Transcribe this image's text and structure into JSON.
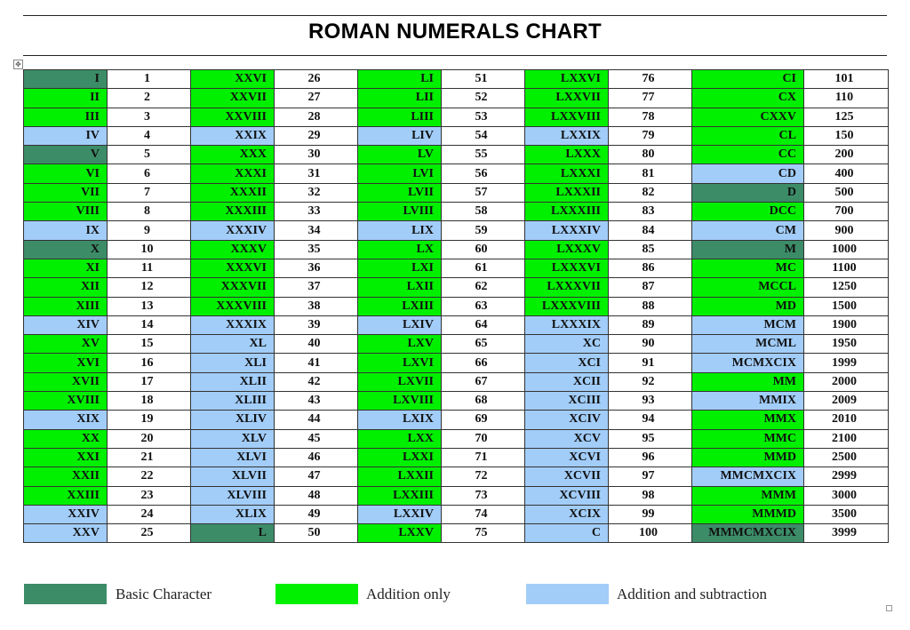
{
  "title": "ROMAN NUMERALS CHART",
  "colors": {
    "basic": "#3C8C68",
    "addition": "#00F000",
    "subtraction": "#A2CDF9"
  },
  "legend": [
    {
      "label": "Basic Character",
      "type": "basic"
    },
    {
      "label": "Addition only",
      "type": "addition"
    },
    {
      "label": "Addition and subtraction",
      "type": "subtraction"
    }
  ],
  "columns": [
    [
      {
        "r": "I",
        "n": "1",
        "t": "basic"
      },
      {
        "r": "II",
        "n": "2",
        "t": "addition"
      },
      {
        "r": "III",
        "n": "3",
        "t": "addition"
      },
      {
        "r": "IV",
        "n": "4",
        "t": "subtraction"
      },
      {
        "r": "V",
        "n": "5",
        "t": "basic"
      },
      {
        "r": "VI",
        "n": "6",
        "t": "addition"
      },
      {
        "r": "VII",
        "n": "7",
        "t": "addition"
      },
      {
        "r": "VIII",
        "n": "8",
        "t": "addition"
      },
      {
        "r": "IX",
        "n": "9",
        "t": "subtraction"
      },
      {
        "r": "X",
        "n": "10",
        "t": "basic"
      },
      {
        "r": "XI",
        "n": "11",
        "t": "addition"
      },
      {
        "r": "XII",
        "n": "12",
        "t": "addition"
      },
      {
        "r": "XIII",
        "n": "13",
        "t": "addition"
      },
      {
        "r": "XIV",
        "n": "14",
        "t": "subtraction"
      },
      {
        "r": "XV",
        "n": "15",
        "t": "addition"
      },
      {
        "r": "XVI",
        "n": "16",
        "t": "addition"
      },
      {
        "r": "XVII",
        "n": "17",
        "t": "addition"
      },
      {
        "r": "XVIII",
        "n": "18",
        "t": "addition"
      },
      {
        "r": "XIX",
        "n": "19",
        "t": "subtraction"
      },
      {
        "r": "XX",
        "n": "20",
        "t": "addition"
      },
      {
        "r": "XXI",
        "n": "21",
        "t": "addition"
      },
      {
        "r": "XXII",
        "n": "22",
        "t": "addition"
      },
      {
        "r": "XXIII",
        "n": "23",
        "t": "addition"
      },
      {
        "r": "XXIV",
        "n": "24",
        "t": "subtraction"
      },
      {
        "r": "XXV",
        "n": "25",
        "t": "subtraction"
      }
    ],
    [
      {
        "r": "XXVI",
        "n": "26",
        "t": "addition"
      },
      {
        "r": "XXVII",
        "n": "27",
        "t": "addition"
      },
      {
        "r": "XXVIII",
        "n": "28",
        "t": "addition"
      },
      {
        "r": "XXIX",
        "n": "29",
        "t": "subtraction"
      },
      {
        "r": "XXX",
        "n": "30",
        "t": "addition"
      },
      {
        "r": "XXXI",
        "n": "31",
        "t": "addition"
      },
      {
        "r": "XXXII",
        "n": "32",
        "t": "addition"
      },
      {
        "r": "XXXIII",
        "n": "33",
        "t": "addition"
      },
      {
        "r": "XXXIV",
        "n": "34",
        "t": "subtraction"
      },
      {
        "r": "XXXV",
        "n": "35",
        "t": "addition"
      },
      {
        "r": "XXXVI",
        "n": "36",
        "t": "addition"
      },
      {
        "r": "XXXVII",
        "n": "37",
        "t": "addition"
      },
      {
        "r": "XXXVIII",
        "n": "38",
        "t": "addition"
      },
      {
        "r": "XXXIX",
        "n": "39",
        "t": "subtraction"
      },
      {
        "r": "XL",
        "n": "40",
        "t": "subtraction"
      },
      {
        "r": "XLI",
        "n": "41",
        "t": "subtraction"
      },
      {
        "r": "XLII",
        "n": "42",
        "t": "subtraction"
      },
      {
        "r": "XLIII",
        "n": "43",
        "t": "subtraction"
      },
      {
        "r": "XLIV",
        "n": "44",
        "t": "subtraction"
      },
      {
        "r": "XLV",
        "n": "45",
        "t": "subtraction"
      },
      {
        "r": "XLVI",
        "n": "46",
        "t": "subtraction"
      },
      {
        "r": "XLVII",
        "n": "47",
        "t": "subtraction"
      },
      {
        "r": "XLVIII",
        "n": "48",
        "t": "subtraction"
      },
      {
        "r": "XLIX",
        "n": "49",
        "t": "subtraction"
      },
      {
        "r": "L",
        "n": "50",
        "t": "basic"
      }
    ],
    [
      {
        "r": "LI",
        "n": "51",
        "t": "addition"
      },
      {
        "r": "LII",
        "n": "52",
        "t": "addition"
      },
      {
        "r": "LIII",
        "n": "53",
        "t": "addition"
      },
      {
        "r": "LIV",
        "n": "54",
        "t": "subtraction"
      },
      {
        "r": "LV",
        "n": "55",
        "t": "addition"
      },
      {
        "r": "LVI",
        "n": "56",
        "t": "addition"
      },
      {
        "r": "LVII",
        "n": "57",
        "t": "addition"
      },
      {
        "r": "LVIII",
        "n": "58",
        "t": "addition"
      },
      {
        "r": "LIX",
        "n": "59",
        "t": "subtraction"
      },
      {
        "r": "LX",
        "n": "60",
        "t": "addition"
      },
      {
        "r": "LXI",
        "n": "61",
        "t": "addition"
      },
      {
        "r": "LXII",
        "n": "62",
        "t": "addition"
      },
      {
        "r": "LXIII",
        "n": "63",
        "t": "addition"
      },
      {
        "r": "LXIV",
        "n": "64",
        "t": "subtraction"
      },
      {
        "r": "LXV",
        "n": "65",
        "t": "addition"
      },
      {
        "r": "LXVI",
        "n": "66",
        "t": "addition"
      },
      {
        "r": "LXVII",
        "n": "67",
        "t": "addition"
      },
      {
        "r": "LXVIII",
        "n": "68",
        "t": "addition"
      },
      {
        "r": "LXIX",
        "n": "69",
        "t": "subtraction"
      },
      {
        "r": "LXX",
        "n": "70",
        "t": "addition"
      },
      {
        "r": "LXXI",
        "n": "71",
        "t": "addition"
      },
      {
        "r": "LXXII",
        "n": "72",
        "t": "addition"
      },
      {
        "r": "LXXIII",
        "n": "73",
        "t": "addition"
      },
      {
        "r": "LXXIV",
        "n": "74",
        "t": "subtraction"
      },
      {
        "r": "LXXV",
        "n": "75",
        "t": "addition"
      }
    ],
    [
      {
        "r": "LXXVI",
        "n": "76",
        "t": "addition"
      },
      {
        "r": "LXXVII",
        "n": "77",
        "t": "addition"
      },
      {
        "r": "LXXVIII",
        "n": "78",
        "t": "addition"
      },
      {
        "r": "LXXIX",
        "n": "79",
        "t": "subtraction"
      },
      {
        "r": "LXXX",
        "n": "80",
        "t": "addition"
      },
      {
        "r": "LXXXI",
        "n": "81",
        "t": "addition"
      },
      {
        "r": "LXXXII",
        "n": "82",
        "t": "addition"
      },
      {
        "r": "LXXXIII",
        "n": "83",
        "t": "addition"
      },
      {
        "r": "LXXXIV",
        "n": "84",
        "t": "subtraction"
      },
      {
        "r": "LXXXV",
        "n": "85",
        "t": "addition"
      },
      {
        "r": "LXXXVI",
        "n": "86",
        "t": "addition"
      },
      {
        "r": "LXXXVII",
        "n": "87",
        "t": "addition"
      },
      {
        "r": "LXXXVIII",
        "n": "88",
        "t": "addition"
      },
      {
        "r": "LXXXIX",
        "n": "89",
        "t": "subtraction"
      },
      {
        "r": "XC",
        "n": "90",
        "t": "subtraction"
      },
      {
        "r": "XCI",
        "n": "91",
        "t": "subtraction"
      },
      {
        "r": "XCII",
        "n": "92",
        "t": "subtraction"
      },
      {
        "r": "XCIII",
        "n": "93",
        "t": "subtraction"
      },
      {
        "r": "XCIV",
        "n": "94",
        "t": "subtraction"
      },
      {
        "r": "XCV",
        "n": "95",
        "t": "subtraction"
      },
      {
        "r": "XCVI",
        "n": "96",
        "t": "subtraction"
      },
      {
        "r": "XCVII",
        "n": "97",
        "t": "subtraction"
      },
      {
        "r": "XCVIII",
        "n": "98",
        "t": "subtraction"
      },
      {
        "r": "XCIX",
        "n": "99",
        "t": "subtraction"
      },
      {
        "r": "C",
        "n": "100",
        "t": "subtraction"
      }
    ],
    [
      {
        "r": "CI",
        "n": "101",
        "t": "addition"
      },
      {
        "r": "CX",
        "n": "110",
        "t": "addition"
      },
      {
        "r": "CXXV",
        "n": "125",
        "t": "addition"
      },
      {
        "r": "CL",
        "n": "150",
        "t": "addition"
      },
      {
        "r": "CC",
        "n": "200",
        "t": "addition"
      },
      {
        "r": "CD",
        "n": "400",
        "t": "subtraction"
      },
      {
        "r": "D",
        "n": "500",
        "t": "basic"
      },
      {
        "r": "DCC",
        "n": "700",
        "t": "addition"
      },
      {
        "r": "CM",
        "n": "900",
        "t": "subtraction"
      },
      {
        "r": "M",
        "n": "1000",
        "t": "basic"
      },
      {
        "r": "MC",
        "n": "1100",
        "t": "addition"
      },
      {
        "r": "MCCL",
        "n": "1250",
        "t": "addition"
      },
      {
        "r": "MD",
        "n": "1500",
        "t": "addition"
      },
      {
        "r": "MCM",
        "n": "1900",
        "t": "subtraction"
      },
      {
        "r": "MCML",
        "n": "1950",
        "t": "subtraction"
      },
      {
        "r": "MCMXCIX",
        "n": "1999",
        "t": "subtraction"
      },
      {
        "r": "MM",
        "n": "2000",
        "t": "addition"
      },
      {
        "r": "MMIX",
        "n": "2009",
        "t": "subtraction"
      },
      {
        "r": "MMX",
        "n": "2010",
        "t": "addition"
      },
      {
        "r": "MMC",
        "n": "2100",
        "t": "addition"
      },
      {
        "r": "MMD",
        "n": "2500",
        "t": "addition"
      },
      {
        "r": "MMCMXCIX",
        "n": "2999",
        "t": "subtraction"
      },
      {
        "r": "MMM",
        "n": "3000",
        "t": "addition"
      },
      {
        "r": "MMMD",
        "n": "3500",
        "t": "addition"
      },
      {
        "r": "MMMCMXCIX",
        "n": "3999",
        "t": "basic"
      }
    ]
  ]
}
